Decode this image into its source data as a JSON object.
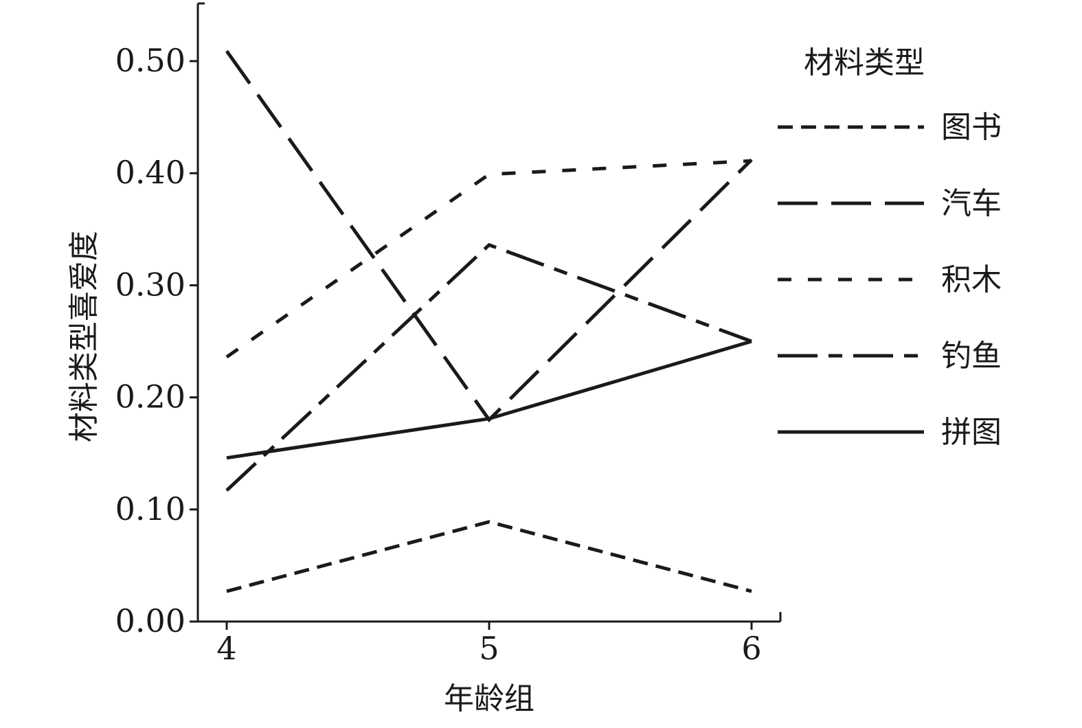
{
  "chart_data": {
    "type": "line",
    "title": "",
    "xlabel": "年龄组",
    "ylabel": "材料类型喜爱度",
    "categories": [
      "4",
      "5",
      "6"
    ],
    "y_ticks": [
      "0.00",
      "0.10",
      "0.20",
      "0.30",
      "0.40",
      "0.50"
    ],
    "ylim": [
      0,
      0.55
    ],
    "grid": false,
    "legend": {
      "title": "材料类型",
      "placement": "right"
    },
    "series": [
      {
        "name": "图书",
        "values": [
          0.027,
          0.089,
          0.027
        ],
        "color": "#1a1a1a",
        "dash": "short-dash"
      },
      {
        "name": "汽车",
        "values": [
          0.509,
          0.18,
          0.412
        ],
        "color": "#1a1a1a",
        "dash": "long-dash"
      },
      {
        "name": "积木",
        "values": [
          0.236,
          0.399,
          0.411
        ],
        "color": "#1a1a1a",
        "dash": "dash-sparse"
      },
      {
        "name": "钓鱼",
        "values": [
          0.117,
          0.336,
          0.25
        ],
        "color": "#1a1a1a",
        "dash": "dash-dot"
      },
      {
        "name": "拼图",
        "values": [
          0.146,
          0.181,
          0.25
        ],
        "color": "#1a1a1a",
        "dash": "solid"
      }
    ]
  }
}
